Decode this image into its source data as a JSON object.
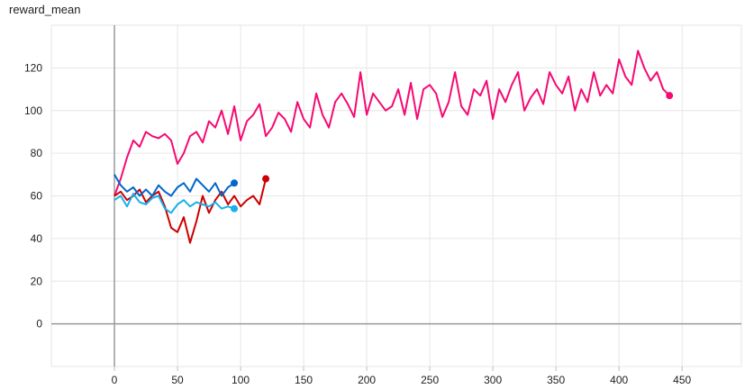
{
  "chart_title": "reward_mean",
  "chart_data": {
    "type": "line",
    "title": "reward_mean",
    "xlabel": "",
    "ylabel": "",
    "xlim": [
      -50,
      497
    ],
    "ylim": [
      -20,
      140
    ],
    "x_ticks": [
      0,
      50,
      100,
      150,
      200,
      250,
      300,
      350,
      400,
      450
    ],
    "y_ticks": [
      0,
      20,
      40,
      60,
      80,
      100,
      120
    ],
    "grid": true,
    "legend": "none",
    "series": [
      {
        "color": "#f50a73",
        "x": [
          0,
          5,
          10,
          15,
          20,
          25,
          30,
          35,
          40,
          45,
          50,
          55,
          60,
          65,
          70,
          75,
          80,
          85,
          90,
          95,
          100,
          105,
          110,
          115,
          120,
          125,
          130,
          135,
          140,
          145,
          150,
          155,
          160,
          165,
          170,
          175,
          180,
          185,
          190,
          195,
          200,
          205,
          210,
          215,
          220,
          225,
          230,
          235,
          240,
          245,
          250,
          255,
          260,
          265,
          270,
          275,
          280,
          285,
          290,
          295,
          300,
          305,
          310,
          315,
          320,
          325,
          330,
          335,
          340,
          345,
          350,
          355,
          360,
          365,
          370,
          375,
          380,
          385,
          390,
          395,
          400,
          405,
          410,
          415,
          420,
          425,
          430,
          435,
          440
        ],
        "values": [
          60,
          68,
          78,
          86,
          83,
          90,
          88,
          87,
          89,
          86,
          75,
          80,
          88,
          90,
          85,
          95,
          92,
          100,
          89,
          102,
          86,
          95,
          98,
          103,
          88,
          92,
          99,
          96,
          90,
          104,
          96,
          92,
          108,
          98,
          92,
          104,
          108,
          103,
          97,
          118,
          98,
          108,
          104,
          100,
          102,
          110,
          98,
          113,
          96,
          110,
          112,
          108,
          97,
          104,
          118,
          102,
          98,
          110,
          107,
          114,
          96,
          110,
          104,
          112,
          118,
          100,
          106,
          110,
          103,
          118,
          112,
          108,
          116,
          100,
          110,
          104,
          118,
          107,
          112,
          108,
          124,
          116,
          112,
          128,
          120,
          114,
          118,
          110,
          107
        ],
        "last_value": 107
      },
      {
        "color": "#cc0000",
        "x": [
          0,
          5,
          10,
          15,
          20,
          25,
          30,
          35,
          40,
          45,
          50,
          55,
          60,
          65,
          70,
          75,
          80,
          85,
          90,
          95,
          100,
          105,
          110,
          115,
          120
        ],
        "values": [
          60,
          62,
          58,
          60,
          63,
          57,
          60,
          62,
          55,
          45,
          43,
          50,
          38,
          48,
          60,
          52,
          58,
          62,
          56,
          60,
          55,
          58,
          60,
          56,
          68
        ],
        "last_value": 68
      },
      {
        "color": "#0066cc",
        "x": [
          0,
          5,
          10,
          15,
          20,
          25,
          30,
          35,
          40,
          45,
          50,
          55,
          60,
          65,
          70,
          75,
          80,
          85,
          90,
          95
        ],
        "values": [
          70,
          65,
          62,
          64,
          60,
          63,
          60,
          65,
          62,
          60,
          64,
          66,
          62,
          68,
          65,
          62,
          66,
          60,
          64,
          66
        ],
        "last_value": 66
      },
      {
        "color": "#16b1ec",
        "x": [
          0,
          5,
          10,
          15,
          20,
          25,
          30,
          35,
          40,
          45,
          50,
          55,
          60,
          65,
          70,
          75,
          80,
          85,
          90,
          95
        ],
        "values": [
          58,
          60,
          55,
          61,
          57,
          56,
          59,
          60,
          54,
          52,
          56,
          58,
          55,
          57,
          56,
          55,
          57,
          54,
          55,
          54
        ],
        "last_value": 54
      }
    ]
  }
}
